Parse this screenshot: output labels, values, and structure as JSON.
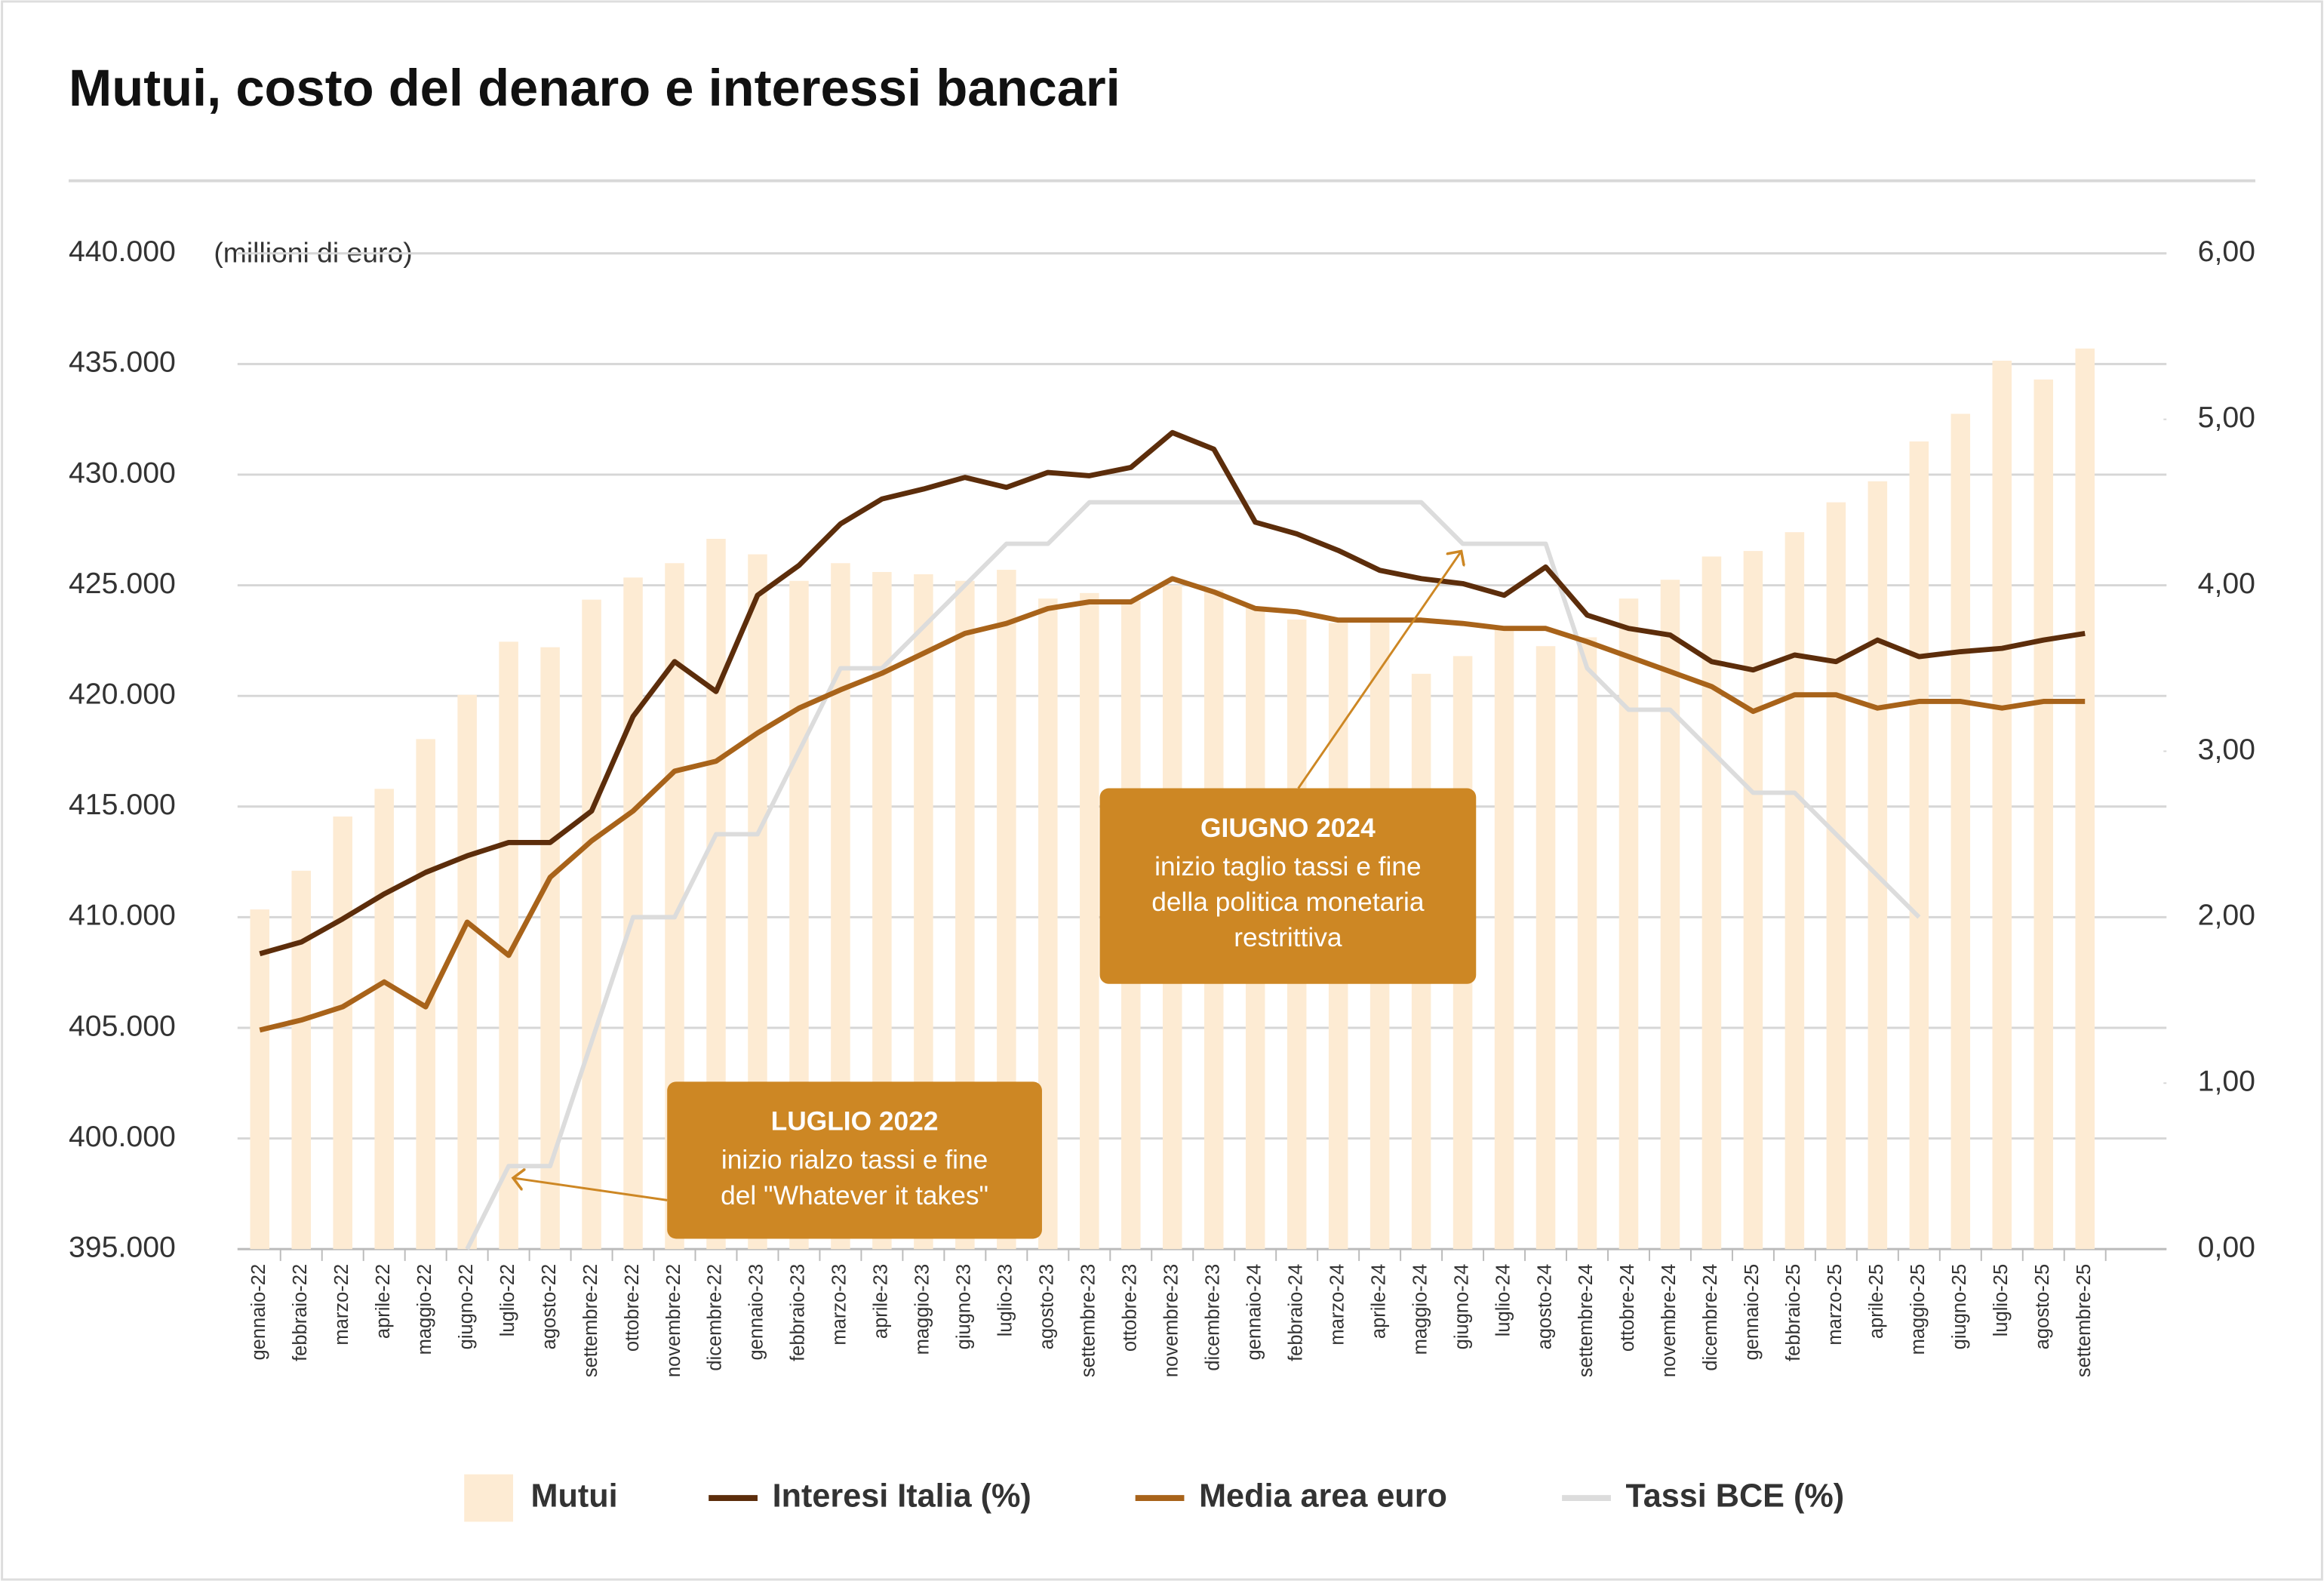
{
  "chart_data": {
    "type": "bar",
    "title": "Mutui, costo del denaro e interessi bancari",
    "y_axis_label": "(millioni di euro)",
    "categories": [
      "gennaio-22",
      "febbraio-22",
      "marzo-22",
      "aprile-22",
      "maggio-22",
      "giugno-22",
      "luglio-22",
      "agosto-22",
      "settembre-22",
      "ottobre-22",
      "novembre-22",
      "dicembre-22",
      "gennaio-23",
      "febbraio-23",
      "marzo-23",
      "aprile-23",
      "maggio-23",
      "giugno-23",
      "luglio-23",
      "agosto-23",
      "settembre-23",
      "ottobre-23",
      "novembre-23",
      "dicembre-23",
      "gennaio-24",
      "febbraio-24",
      "marzo-24",
      "aprile-24",
      "maggio-24",
      "giugno-24",
      "luglio-24",
      "agosto-24",
      "settembre-24",
      "ottobre-24",
      "novembre-24",
      "dicembre-24",
      "gennaio-25",
      "febbraio-25",
      "marzo-25",
      "aprile-25",
      "maggio-25",
      "giugno-25",
      "luglio-25",
      "agosto-25",
      "settembre-25"
    ],
    "series": [
      {
        "name": "Mutui",
        "type": "bar",
        "axis": "y",
        "color": "#fdebd3",
        "values": [
          410350,
          412100,
          414550,
          415800,
          418050,
          420050,
          422450,
          422200,
          424350,
          425350,
          426000,
          427100,
          426400,
          425200,
          426000,
          425600,
          425500,
          425200,
          425700,
          424400,
          424650,
          424300,
          425000,
          424800,
          424000,
          423450,
          423300,
          423300,
          421000,
          421800,
          423000,
          422250,
          422650,
          424400,
          425250,
          426300,
          426550,
          427400,
          428750,
          429700,
          431500,
          432750,
          435150,
          434300,
          435700
        ]
      },
      {
        "name": "Interesi Italia (%)",
        "type": "line",
        "axis": "y2",
        "color": "#5c2d0b",
        "values": [
          1.78,
          1.85,
          1.99,
          2.14,
          2.27,
          2.37,
          2.45,
          2.45,
          2.64,
          3.21,
          3.54,
          3.36,
          3.94,
          4.12,
          4.37,
          4.52,
          4.58,
          4.65,
          4.59,
          4.68,
          4.66,
          4.71,
          4.92,
          4.82,
          4.38,
          4.31,
          4.21,
          4.09,
          4.04,
          4.01,
          3.94,
          4.11,
          3.82,
          3.74,
          3.7,
          3.54,
          3.49,
          3.58,
          3.54,
          3.67,
          3.57,
          3.6,
          3.62,
          3.67,
          3.71
        ]
      },
      {
        "name": "Media area euro",
        "type": "line",
        "axis": "y2",
        "color": "#a8631a",
        "values": [
          1.32,
          1.38,
          1.46,
          1.61,
          1.46,
          1.97,
          1.77,
          2.24,
          2.46,
          2.64,
          2.88,
          2.94,
          3.11,
          3.26,
          3.37,
          3.47,
          3.59,
          3.71,
          3.77,
          3.86,
          3.9,
          3.9,
          4.04,
          3.96,
          3.86,
          3.84,
          3.79,
          3.79,
          3.79,
          3.77,
          3.74,
          3.74,
          3.66,
          3.57,
          3.48,
          3.39,
          3.24,
          3.34,
          3.34,
          3.26,
          3.3,
          3.3,
          3.26,
          3.3,
          3.3
        ]
      },
      {
        "name": "Tassi BCE (%)",
        "type": "line",
        "axis": "y2",
        "color": "#dcdcdc",
        "values": [
          null,
          null,
          null,
          null,
          null,
          0,
          0.5,
          0.5,
          1.25,
          2,
          2,
          2.5,
          2.5,
          3,
          3.5,
          3.5,
          3.75,
          4,
          4.25,
          4.25,
          4.5,
          4.5,
          4.5,
          4.5,
          4.5,
          4.5,
          4.5,
          4.5,
          4.5,
          4.25,
          4.25,
          4.25,
          3.5,
          3.25,
          3.25,
          3,
          2.75,
          2.75,
          2.5,
          2.25,
          2,
          null,
          null,
          null,
          null
        ]
      }
    ],
    "ylim": [
      395000,
      440000
    ],
    "yticks": [
      {
        "value": 395000,
        "label": "395.000"
      },
      {
        "value": 400000,
        "label": "400.000"
      },
      {
        "value": 405000,
        "label": "405.000"
      },
      {
        "value": 410000,
        "label": "410.000"
      },
      {
        "value": 415000,
        "label": "415.000"
      },
      {
        "value": 420000,
        "label": "420.000"
      },
      {
        "value": 425000,
        "label": "425.000"
      },
      {
        "value": 430000,
        "label": "430.000"
      },
      {
        "value": 435000,
        "label": "435.000"
      },
      {
        "value": 440000,
        "label": "440.000"
      }
    ],
    "y2lim": [
      0,
      6
    ],
    "y2ticks": [
      {
        "value": 0,
        "label": "0,00"
      },
      {
        "value": 1,
        "label": "1,00"
      },
      {
        "value": 2,
        "label": "2,00"
      },
      {
        "value": 3,
        "label": "3,00"
      },
      {
        "value": 4,
        "label": "4,00"
      },
      {
        "value": 5,
        "label": "5,00"
      },
      {
        "value": 6,
        "label": "6,00"
      }
    ],
    "grid": true,
    "legend": "bottom",
    "annotations": [
      {
        "title": "GIUGNO 2024",
        "lines": [
          "inizio taglio tassi e fine",
          "della politica monetaria",
          "restrittiva"
        ],
        "color": "#cd8724"
      },
      {
        "title": "LUGLIO 2022",
        "lines": [
          "inizio rialzo tassi e fine",
          "del  \"Whatever it takes\""
        ],
        "color": "#cd8724"
      }
    ]
  }
}
